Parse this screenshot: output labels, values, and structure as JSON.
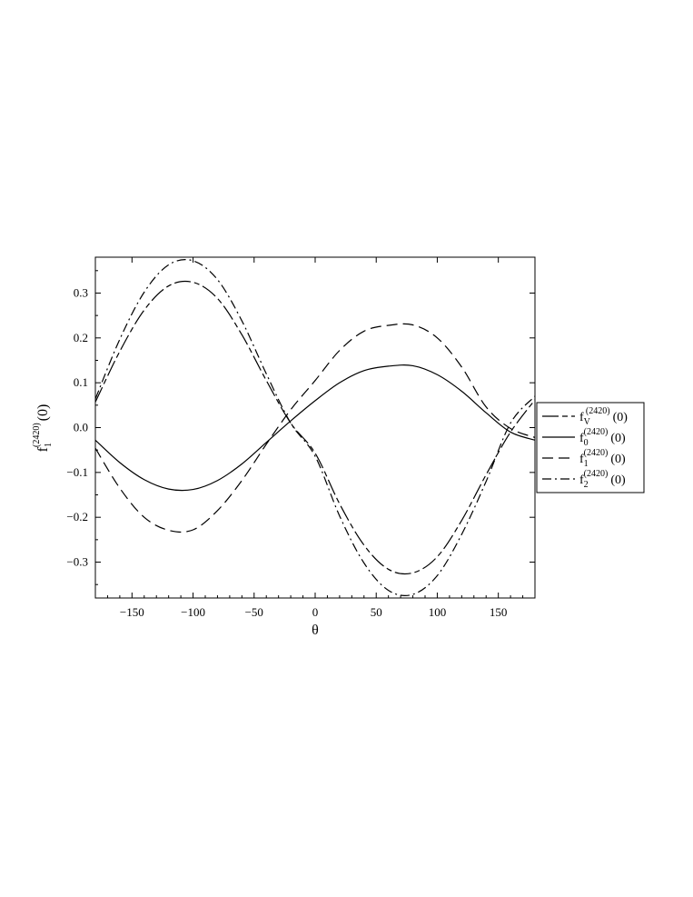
{
  "chart_data": {
    "type": "line",
    "title": "",
    "xlabel": "θ",
    "ylabel": {
      "base": "f",
      "sub": "1",
      "sup": "(2420)",
      "arg": "(0)"
    },
    "xlim": [
      -180,
      180
    ],
    "ylim": [
      -0.38,
      0.38
    ],
    "xticks": [
      -150,
      -100,
      -50,
      0,
      50,
      100,
      150
    ],
    "xtick_labels": [
      "−150",
      "−100",
      "−50",
      "0",
      "50",
      "100",
      "150"
    ],
    "yticks": [
      -0.3,
      -0.2,
      -0.1,
      0.0,
      0.1,
      0.2,
      0.3
    ],
    "ytick_labels": [
      "−0.3",
      "−0.2",
      "−0.1",
      "0.0",
      "0.1",
      "0.2",
      "0.3"
    ],
    "grid": false,
    "legend_position": "right",
    "x": [
      -180,
      -160,
      -140,
      -120,
      -100,
      -80,
      -60,
      -40,
      -20,
      0,
      20,
      40,
      60,
      80,
      100,
      120,
      140,
      160,
      180
    ],
    "series": [
      {
        "name": "f_V^(2420)(0)",
        "legend": {
          "base": "f",
          "sub": "V",
          "sup": "(2420)",
          "arg": "(0)"
        },
        "style": "long-short-dash",
        "values": [
          0.057,
          0.17,
          0.262,
          0.316,
          0.324,
          0.288,
          0.207,
          0.105,
          0.01,
          -0.057,
          -0.17,
          -0.262,
          -0.316,
          -0.324,
          -0.288,
          -0.207,
          -0.105,
          -0.01,
          0.062
        ]
      },
      {
        "name": "f_0^(2420)(0)",
        "legend": {
          "base": "f",
          "sub": "0",
          "sup": "(2420)",
          "arg": "(0)"
        },
        "style": "solid",
        "values": [
          -0.028,
          -0.078,
          -0.116,
          -0.137,
          -0.138,
          -0.118,
          -0.081,
          -0.033,
          0.015,
          0.06,
          0.1,
          0.127,
          0.137,
          0.138,
          0.118,
          0.081,
          0.033,
          -0.01,
          -0.028
        ]
      },
      {
        "name": "f_1^(2420)(0)",
        "legend": {
          "base": "f",
          "sub": "1",
          "sup": "(2420)",
          "arg": "(0)"
        },
        "style": "dash",
        "values": [
          -0.046,
          -0.135,
          -0.2,
          -0.229,
          -0.228,
          -0.185,
          -0.118,
          -0.037,
          0.04,
          0.105,
          0.172,
          0.215,
          0.228,
          0.229,
          0.2,
          0.135,
          0.046,
          -0.002,
          -0.022
        ]
      },
      {
        "name": "f_2^(2420)(0)",
        "legend": {
          "base": "f",
          "sub": "2",
          "sup": "(2420)",
          "arg": "(0)"
        },
        "style": "dash-dot",
        "values": [
          0.064,
          0.197,
          0.302,
          0.363,
          0.372,
          0.33,
          0.238,
          0.12,
          0.01,
          -0.064,
          -0.197,
          -0.302,
          -0.363,
          -0.372,
          -0.33,
          -0.238,
          -0.12,
          0.01,
          0.07
        ]
      }
    ]
  }
}
